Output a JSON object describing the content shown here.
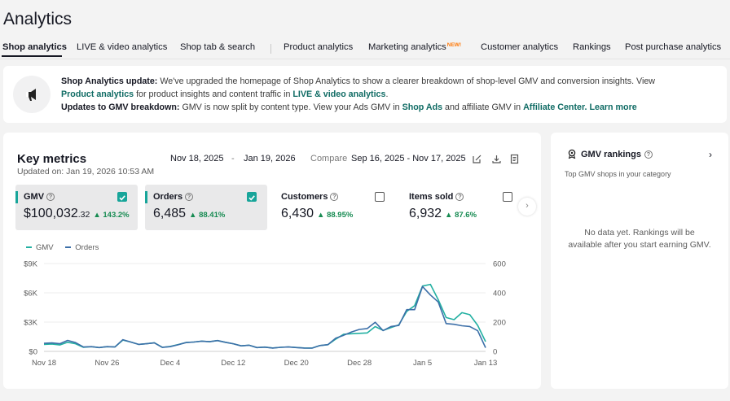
{
  "page": {
    "title": "Analytics"
  },
  "tabs": [
    {
      "label": "Shop analytics"
    },
    {
      "label": "LIVE & video analytics"
    },
    {
      "label": "Shop tab & search"
    },
    {
      "label": "Product analytics"
    },
    {
      "label": "Marketing analytics",
      "badge": "NEW!"
    },
    {
      "label": "Customer analytics"
    },
    {
      "label": "Rankings"
    },
    {
      "label": "Post purchase analytics"
    }
  ],
  "banner": {
    "l1_title": "Shop Analytics update:",
    "l1_text": "We've upgraded the homepage of Shop Analytics to show a clearer breakdown of shop-level GMV and conversion insights. View",
    "l2_link1": "Product analytics",
    "l2_text": "for product insights and content traffic in",
    "l2_link2": "LIVE & video analytics",
    "l2_end": ".",
    "l3_title": "Updates to GMV breakdown:",
    "l3_text1": "GMV is now split by content type. View your Ads GMV in",
    "l3_link1": "Shop Ads",
    "l3_text2": "and affiliate GMV in",
    "l3_link2": "Affiliate Center.",
    "l3_link3": "Learn more"
  },
  "key_metrics": {
    "title": "Key metrics",
    "updated": "Updated on: Jan 19, 2026 10:53 AM",
    "date_start": "Nov 18, 2025",
    "date_sep": "-",
    "date_end": "Jan 19, 2026",
    "compare_label": "Compare",
    "compare_range": "Sep 16, 2025 - Nov 17, 2025",
    "metrics": [
      {
        "label": "GMV",
        "prefix": "$",
        "value": "100,032",
        "decimals": ".32",
        "change": "▲ 143.2%",
        "checked": true
      },
      {
        "label": "Orders",
        "prefix": "",
        "value": "6,485",
        "decimals": "",
        "change": "▲ 88.41%",
        "checked": true
      },
      {
        "label": "Customers",
        "prefix": "",
        "value": "6,430",
        "decimals": "",
        "change": "▲ 88.95%",
        "checked": false
      },
      {
        "label": "Items sold",
        "prefix": "",
        "value": "6,932",
        "decimals": "",
        "change": "▲ 87.6%",
        "checked": false
      }
    ]
  },
  "chart_data": {
    "type": "line",
    "legend": [
      "GMV",
      "Orders"
    ],
    "x_ticks": [
      "Nov 18",
      "Nov 26",
      "Dec 4",
      "Dec 12",
      "Dec 20",
      "Dec 28",
      "Jan 5",
      "Jan 13"
    ],
    "y_left_ticks": [
      "$0",
      "$3K",
      "$6K",
      "$9K"
    ],
    "y_right_ticks": [
      "0",
      "200",
      "400",
      "600"
    ],
    "y_left_range": [
      0,
      9000
    ],
    "y_right_range": [
      0,
      600
    ],
    "colors": {
      "GMV": "#23b0a2",
      "Orders": "#3c6fa8"
    },
    "series": [
      {
        "name": "GMV",
        "axis": "left",
        "values": [
          720,
          750,
          660,
          930,
          780,
          420,
          480,
          390,
          480,
          460,
          1160,
          960,
          720,
          780,
          880,
          420,
          510,
          690,
          910,
          960,
          1050,
          990,
          1110,
          930,
          780,
          570,
          630,
          390,
          440,
          350,
          420,
          460,
          400,
          350,
          340,
          600,
          680,
          1260,
          1760,
          1810,
          1850,
          1890,
          2540,
          2150,
          2430,
          2720,
          4090,
          4680,
          6690,
          6870,
          5290,
          3470,
          3250,
          3970,
          3760,
          2670,
          1000
        ]
      },
      {
        "name": "Orders",
        "axis": "right",
        "values": [
          55,
          58,
          52,
          75,
          60,
          30,
          32,
          26,
          32,
          30,
          80,
          64,
          48,
          52,
          58,
          27,
          32,
          45,
          60,
          64,
          70,
          66,
          74,
          62,
          52,
          38,
          42,
          26,
          29,
          23,
          28,
          30,
          26,
          23,
          22,
          40,
          46,
          90,
          110,
          133,
          150,
          156,
          199,
          142,
          170,
          177,
          285,
          285,
          443,
          385,
          337,
          190,
          185,
          175,
          170,
          141,
          25
        ]
      }
    ]
  },
  "rankings": {
    "title": "GMV rankings",
    "subtitle": "Top GMV shops in your category",
    "empty_line1": "No data yet. Rankings will be",
    "empty_line2": "available after you start earning GMV."
  }
}
